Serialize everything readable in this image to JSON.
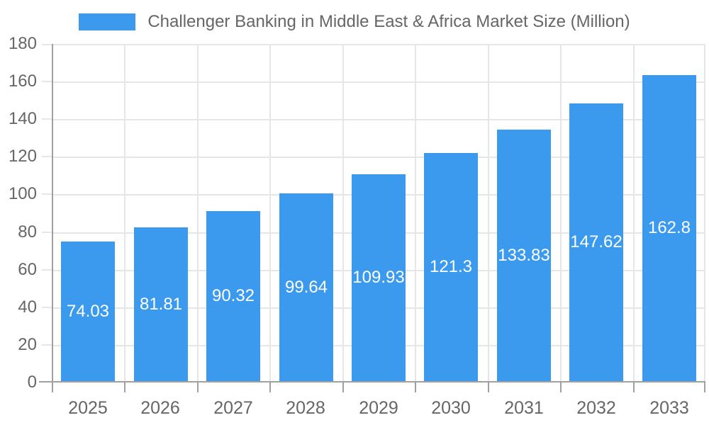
{
  "legend": {
    "label": "Challenger Banking in Middle East & Africa Market Size (Million)"
  },
  "chart_data": {
    "type": "bar",
    "title": "Challenger Banking in Middle East & Africa Market Size (Million)",
    "categories": [
      "2025",
      "2026",
      "2027",
      "2028",
      "2029",
      "2030",
      "2031",
      "2032",
      "2033"
    ],
    "values": [
      74.03,
      81.81,
      90.32,
      99.64,
      109.93,
      121.3,
      133.83,
      147.62,
      162.8
    ],
    "value_labels": [
      "74.03",
      "81.81",
      "90.32",
      "99.64",
      "109.93",
      "121.3",
      "133.83",
      "147.62",
      "162.8"
    ],
    "xlabel": "",
    "ylabel": "",
    "ylim": [
      0,
      180
    ],
    "ytick_step": 20,
    "ytick_labels": [
      "0",
      "20",
      "40",
      "60",
      "80",
      "100",
      "120",
      "140",
      "160",
      "180"
    ],
    "grid": true,
    "legend_position": "top-center",
    "colors": {
      "bar": "#3B9AEE",
      "grid": "#E6E6E6",
      "axis": "#A0A0A0",
      "tick_label": "#666666",
      "legend_text": "#666666",
      "value_label": "#FFFFFF",
      "background": "#FFFFFF"
    }
  }
}
